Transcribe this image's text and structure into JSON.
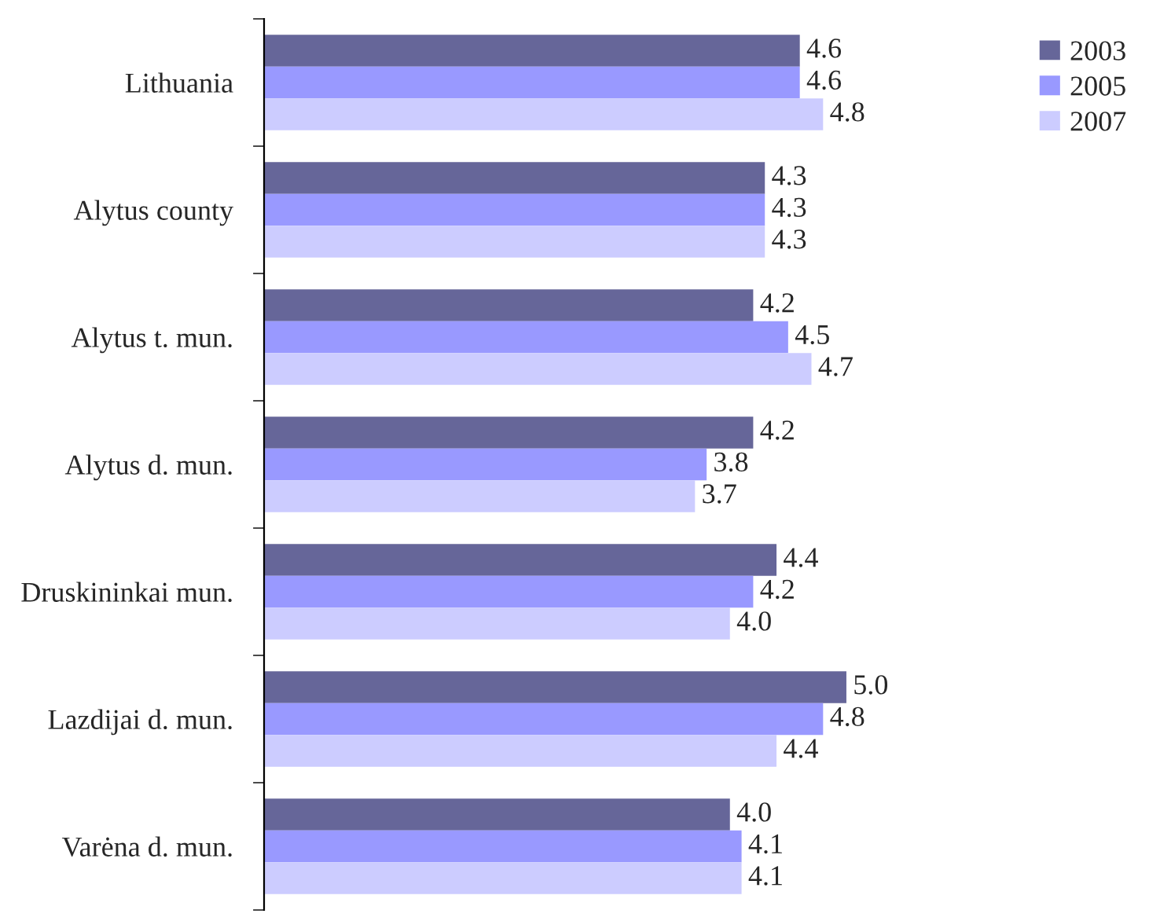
{
  "chart_data": {
    "type": "bar",
    "orientation": "horizontal",
    "categories": [
      "Lithuania",
      "Alytus county",
      "Alytus t. mun.",
      "Alytus d. mun.",
      "Druskininkai mun.",
      "Lazdijai d. mun.",
      "Varėna d. mun."
    ],
    "series": [
      {
        "name": "2003",
        "color": "#666699",
        "values": [
          4.6,
          4.3,
          4.2,
          4.2,
          4.4,
          5.0,
          4.0
        ],
        "value_labels": [
          "4.6",
          "4.3",
          "4.2",
          "4.2",
          "4.4",
          "5.0",
          "4.0"
        ]
      },
      {
        "name": "2005",
        "color": "#9999ff",
        "values": [
          4.6,
          4.3,
          4.5,
          3.8,
          4.2,
          4.8,
          4.1
        ],
        "value_labels": [
          "4.6",
          "4.3",
          "4.5",
          "3.8",
          "4.2",
          "4.8",
          "4.1"
        ]
      },
      {
        "name": "2007",
        "color": "#ccccff",
        "values": [
          4.8,
          4.3,
          4.7,
          3.7,
          4.0,
          4.4,
          4.1
        ],
        "value_labels": [
          "4.8",
          "4.3",
          "4.7",
          "3.7",
          "4.0",
          "4.4",
          "4.1"
        ]
      }
    ],
    "legend": "top right",
    "tick_labels": "y",
    "grid": false
  }
}
